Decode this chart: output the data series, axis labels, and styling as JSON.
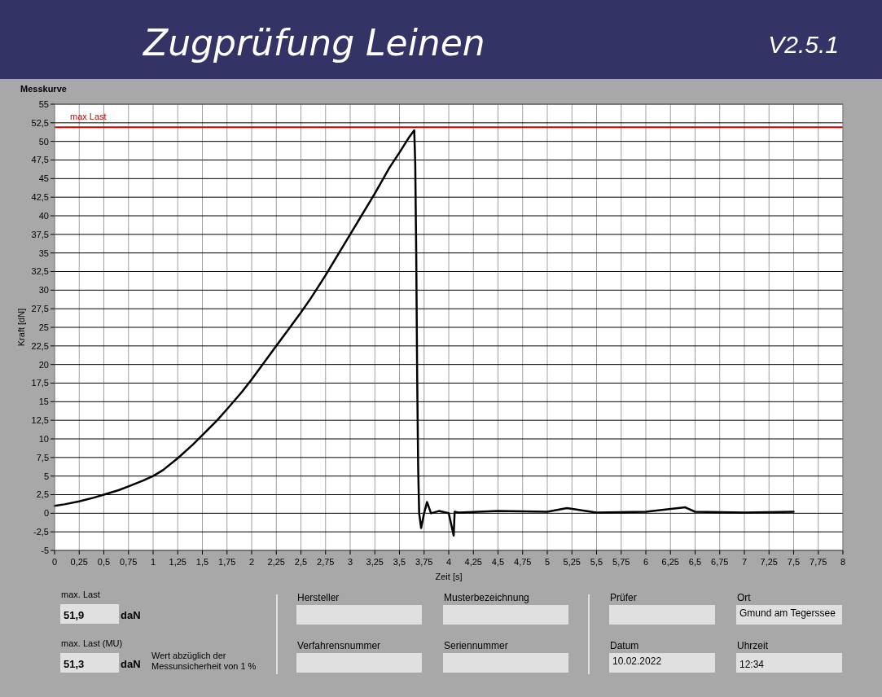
{
  "chart_data": {
    "type": "line",
    "title": "Zugprüfung Leinen",
    "subtitle": "Messkurve",
    "xlabel": "Zeit [s]",
    "ylabel": "Kraft [dN]",
    "series": [
      {
        "color": "#000000",
        "x": [
          0,
          0.1,
          0.25,
          0.4,
          0.5,
          0.65,
          0.75,
          0.9,
          1,
          1.1,
          1.25,
          1.4,
          1.5,
          1.65,
          1.75,
          1.9,
          2,
          2.1,
          2.25,
          2.4,
          2.5,
          2.6,
          2.75,
          2.9,
          3,
          3.1,
          3.25,
          3.4,
          3.5,
          3.6,
          3.65,
          3.66,
          3.67,
          3.68,
          3.69,
          3.7,
          3.72,
          3.75,
          3.78,
          3.82,
          3.9,
          4,
          4.05,
          4.06,
          4.1,
          4.5,
          5,
          5.2,
          5.5,
          6,
          6.4,
          6.5,
          7,
          7.5
        ],
        "values": [
          1,
          1.2,
          1.6,
          2.1,
          2.5,
          3.1,
          3.6,
          4.4,
          5,
          5.8,
          7.4,
          9.2,
          10.5,
          12.5,
          14,
          16.3,
          18,
          19.8,
          22.5,
          25.2,
          27,
          28.9,
          32,
          35.3,
          37.5,
          39.7,
          43,
          46.5,
          48.5,
          50.6,
          51.5,
          47,
          35,
          18,
          6,
          0,
          -2,
          0,
          1.5,
          0,
          0.3,
          0,
          -3,
          0.2,
          0.1,
          0.3,
          0.2,
          0.7,
          0.1,
          0.2,
          0.8,
          0.2,
          0.1,
          0.2
        ]
      }
    ],
    "xlim": [
      0,
      8
    ],
    "ylim": [
      -5,
      55
    ],
    "xticks": [
      0,
      {
        "value": 0.25,
        "label": "0,25"
      },
      {
        "value": 0.5,
        "label": "0,5"
      },
      {
        "value": 0.75,
        "label": "0,75"
      },
      1,
      {
        "value": 1.25,
        "label": "1,25"
      },
      {
        "value": 1.5,
        "label": "1,5"
      },
      {
        "value": 1.75,
        "label": "1,75"
      },
      2,
      {
        "value": 2.25,
        "label": "2,25"
      },
      {
        "value": 2.5,
        "label": "2,5"
      },
      {
        "value": 2.75,
        "label": "2,75"
      },
      3,
      {
        "value": 3.25,
        "label": "3,25"
      },
      {
        "value": 3.5,
        "label": "3,5"
      },
      {
        "value": 3.75,
        "label": "3,75"
      },
      4,
      {
        "value": 4.25,
        "label": "4,25"
      },
      {
        "value": 4.5,
        "label": "4,5"
      },
      {
        "value": 4.75,
        "label": "4,75"
      },
      5,
      {
        "value": 5.25,
        "label": "5,25"
      },
      {
        "value": 5.5,
        "label": "5,5"
      },
      {
        "value": 5.75,
        "label": "5,75"
      },
      6,
      {
        "value": 6.25,
        "label": "6,25"
      },
      {
        "value": 6.5,
        "label": "6,5"
      },
      {
        "value": 6.75,
        "label": "6,75"
      },
      7,
      {
        "value": 7.25,
        "label": "7,25"
      },
      {
        "value": 7.5,
        "label": "7,5"
      },
      {
        "value": 7.75,
        "label": "7,75"
      },
      8
    ],
    "yticks": [
      -5,
      {
        "value": -2.5,
        "label": "-2,5"
      },
      0,
      {
        "value": 2.5,
        "label": "2,5"
      },
      5,
      {
        "value": 7.5,
        "label": "7,5"
      },
      10,
      {
        "value": 12.5,
        "label": "12,5"
      },
      15,
      {
        "value": 17.5,
        "label": "17,5"
      },
      20,
      {
        "value": 22.5,
        "label": "22,5"
      },
      25,
      {
        "value": 27.5,
        "label": "27,5"
      },
      30,
      {
        "value": 32.5,
        "label": "32,5"
      },
      35,
      {
        "value": 37.5,
        "label": "37,5"
      },
      40,
      {
        "value": 42.5,
        "label": "42,5"
      },
      45,
      {
        "value": 47.5,
        "label": "47,5"
      },
      50,
      {
        "value": 52.5,
        "label": "52,5"
      },
      55
    ],
    "grid": true,
    "marker": "none",
    "line_style": "solid",
    "ref_lines": [
      {
        "axis": "y",
        "value": 51.9,
        "label": "max Last",
        "color": "#cc0000"
      }
    ],
    "annotations": [
      "V2.5.1",
      "max. Last",
      "51,9",
      "daN",
      "max. Last (MU)",
      "51,3",
      "daN",
      "Wert abzüglich der",
      "Messunsicherheit von 1 %",
      "Hersteller",
      "Musterbezeichnung",
      "Verfahrensnummer",
      "Seriennummer",
      "Prüfer",
      "Ort",
      "Gmund am Tegerssee",
      "Datum",
      "10.02.2022",
      "Uhrzeit",
      "12:34"
    ]
  }
}
